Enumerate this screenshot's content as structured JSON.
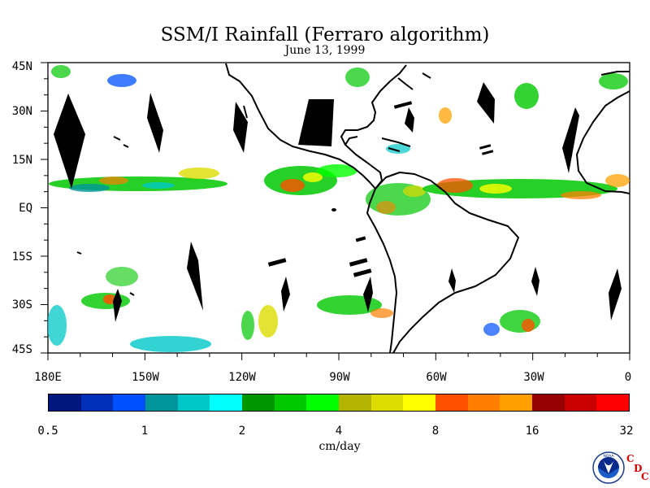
{
  "title": "SSM/I Rainfall (Ferraro algorithm)",
  "date": "June 13, 1999",
  "lat_labels": [
    "45N",
    "30N",
    "15N",
    "EQ",
    "15S",
    "30S",
    "45S"
  ],
  "lon_labels": [
    "180E",
    "150W",
    "120W",
    "90W",
    "60W",
    "30W",
    "0"
  ],
  "colorbar": {
    "colors": [
      "#001780",
      "#0030b8",
      "#0050ff",
      "#00959b",
      "#00c8c8",
      "#00ffff",
      "#009600",
      "#00c800",
      "#00ff00",
      "#b4b400",
      "#dcdc00",
      "#ffff00",
      "#ff5000",
      "#ff8000",
      "#ffa000",
      "#960000",
      "#c80000",
      "#ff0000"
    ],
    "tick_labels": [
      "0.5",
      "1",
      "2",
      "4",
      "8",
      "16",
      "32"
    ],
    "units": "cm/day"
  },
  "logo": {
    "text": "NOAA",
    "icon": "noaa-logo-icon",
    "cdc_letters": [
      "C",
      "D",
      "C"
    ]
  },
  "map": {
    "region": "180E to 0, 45S to 45N",
    "land_outlines": [
      "north-america",
      "south-america",
      "africa"
    ],
    "rain_bands": [
      "itcz-pacific",
      "itcz-atlantic",
      "south-pacific",
      "north-pacific",
      "south-atlantic",
      "amazon"
    ],
    "missing_data_swaths": "black"
  }
}
